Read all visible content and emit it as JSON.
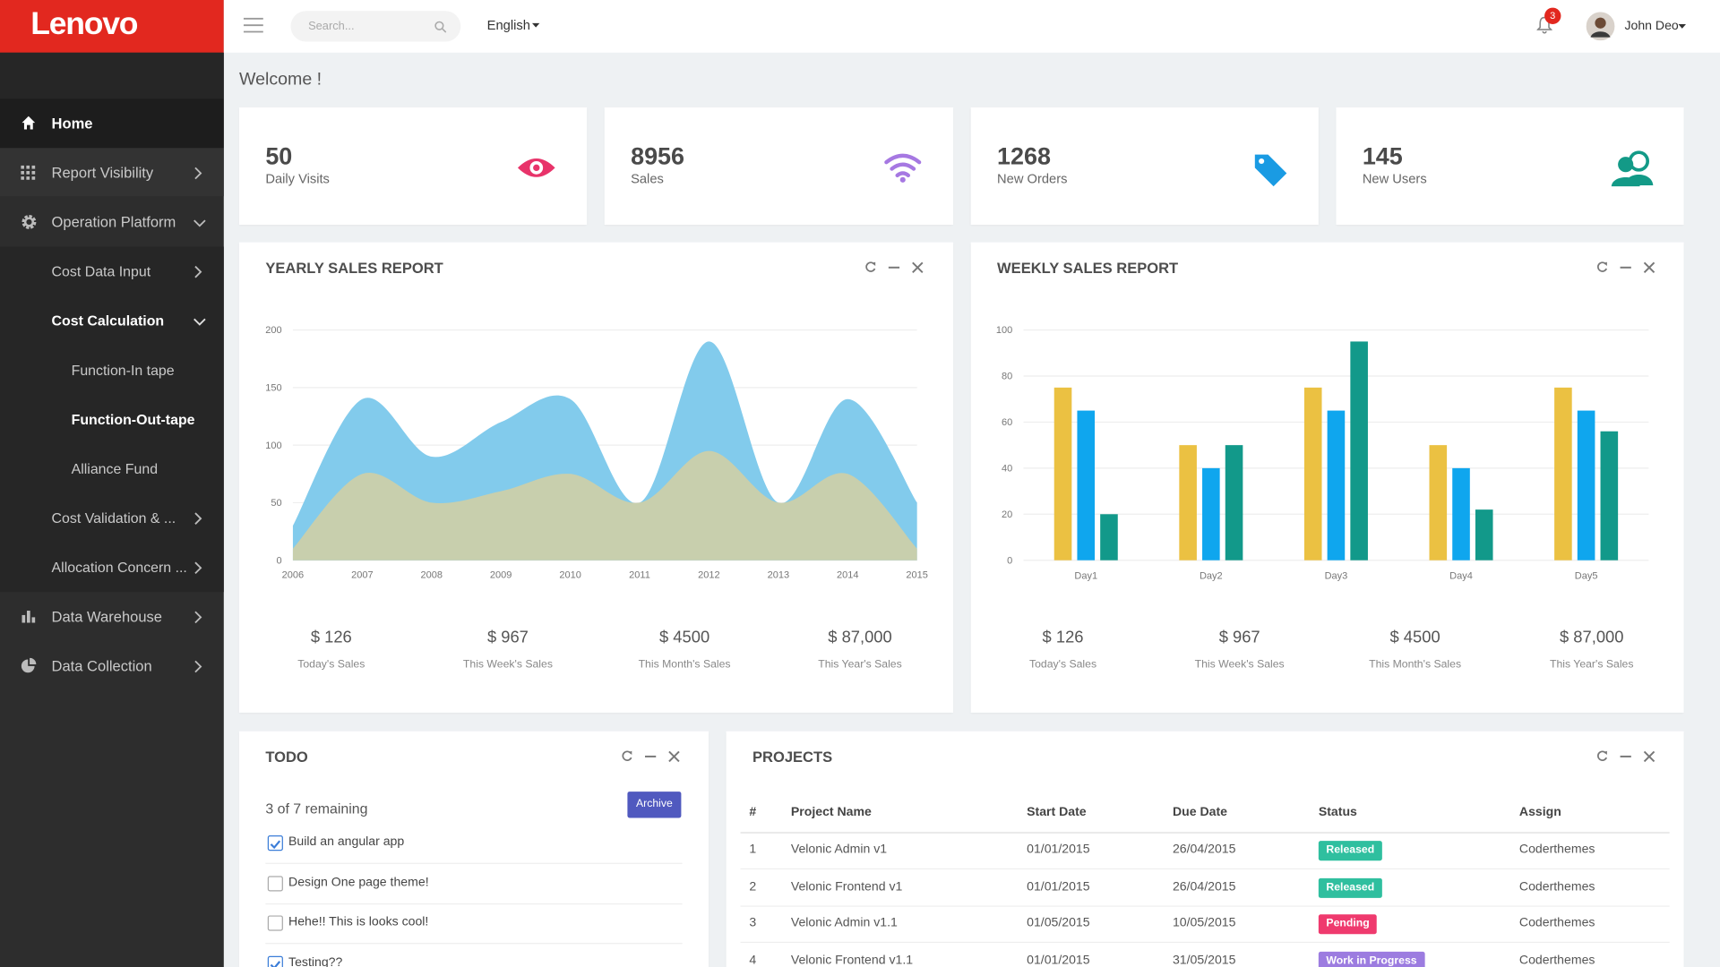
{
  "brand": "Lenovo",
  "search_placeholder": "Search...",
  "language": "English",
  "notifications": "3",
  "user": "John Deo",
  "sidebar": [
    {
      "label": "Home"
    },
    {
      "label": "Report Visibility"
    },
    {
      "label": "Operation Platform"
    },
    {
      "label": "Cost Data Input"
    },
    {
      "label": "Cost Calculation"
    },
    {
      "label": "Function-In tape"
    },
    {
      "label": "Function-Out-tape"
    },
    {
      "label": "Alliance Fund"
    },
    {
      "label": "Cost Validation & ..."
    },
    {
      "label": "Allocation Concern ..."
    },
    {
      "label": "Data Warehouse"
    },
    {
      "label": "Data Collection"
    }
  ],
  "welcome": "Welcome !",
  "stats": [
    {
      "value": "50",
      "label": "Daily Visits"
    },
    {
      "value": "8956",
      "label": "Sales"
    },
    {
      "value": "1268",
      "label": "New Orders"
    },
    {
      "value": "145",
      "label": "New Users"
    }
  ],
  "chart_data": [
    {
      "type": "area",
      "title": "YEARLY SALES REPORT",
      "x": [
        2006,
        2007,
        2008,
        2009,
        2010,
        2011,
        2012,
        2013,
        2014,
        2015
      ],
      "xlim": [
        2006,
        2015
      ],
      "xticks": [
        2006,
        2007,
        2008,
        2009,
        2010,
        2011,
        2012,
        2013,
        2014,
        2015
      ],
      "series": [
        {
          "color": "#82cbec",
          "values": [
            30,
            140,
            90,
            120,
            140,
            50,
            190,
            50,
            140,
            50
          ]
        },
        {
          "color": "#c8cfad",
          "values": [
            10,
            75,
            50,
            60,
            75,
            50,
            95,
            50,
            75,
            10
          ]
        }
      ],
      "ylim": [
        0,
        200
      ],
      "yticks": [
        0,
        50,
        100,
        150,
        200
      ],
      "grid": true,
      "summary": [
        {
          "value": "$ 126",
          "label": "Today's Sales"
        },
        {
          "value": "$ 967",
          "label": "This Week's Sales"
        },
        {
          "value": "$ 4500",
          "label": "This Month's Sales"
        },
        {
          "value": "$ 87,000",
          "label": "This Year's Sales"
        }
      ]
    },
    {
      "type": "bar",
      "title": "WEEKLY SALES REPORT",
      "categories": [
        "Day1",
        "Day2",
        "Day3",
        "Day4",
        "Day5"
      ],
      "series": [
        {
          "color": "#ebc142",
          "values": [
            75,
            50,
            75,
            50,
            75
          ]
        },
        {
          "color": "#0fa6ee",
          "values": [
            65,
            40,
            65,
            40,
            65
          ]
        },
        {
          "color": "#12998a",
          "values": [
            20,
            50,
            95,
            22,
            56
          ]
        }
      ],
      "ylim": [
        0,
        100
      ],
      "yticks": [
        0,
        20,
        40,
        60,
        80,
        100
      ],
      "grid": true,
      "summary": [
        {
          "value": "$ 126",
          "label": "Today's Sales"
        },
        {
          "value": "$ 967",
          "label": "This Week's Sales"
        },
        {
          "value": "$ 4500",
          "label": "This Month's Sales"
        },
        {
          "value": "$ 87,000",
          "label": "This Year's Sales"
        }
      ]
    }
  ],
  "todo": {
    "title": "TODO",
    "remaining": "3 of 7 remaining",
    "archive": "Archive",
    "items": [
      {
        "text": "Build an angular app",
        "done": true
      },
      {
        "text": "Design One page theme!",
        "done": false
      },
      {
        "text": "Hehe!! This is looks cool!",
        "done": false
      },
      {
        "text": "Testing??",
        "done": true
      }
    ]
  },
  "projects": {
    "title": "PROJECTS",
    "columns": [
      "#",
      "Project Name",
      "Start Date",
      "Due Date",
      "Status",
      "Assign"
    ],
    "rows": [
      {
        "id": "1",
        "name": "Velonic Admin v1",
        "start": "01/01/2015",
        "due": "26/04/2015",
        "status": "Released",
        "status_color": "#2fbf9f",
        "assign": "Coderthemes"
      },
      {
        "id": "2",
        "name": "Velonic Frontend v1",
        "start": "01/01/2015",
        "due": "26/04/2015",
        "status": "Released",
        "status_color": "#2fbf9f",
        "assign": "Coderthemes"
      },
      {
        "id": "3",
        "name": "Velonic Admin v1.1",
        "start": "01/05/2015",
        "due": "10/05/2015",
        "status": "Pending",
        "status_color": "#ef3a6e",
        "assign": "Coderthemes"
      },
      {
        "id": "4",
        "name": "Velonic Frontend v1.1",
        "start": "01/01/2015",
        "due": "31/05/2015",
        "status": "Work in Progress",
        "status_color": "#9c7ce0",
        "assign": "Coderthemes"
      }
    ]
  }
}
